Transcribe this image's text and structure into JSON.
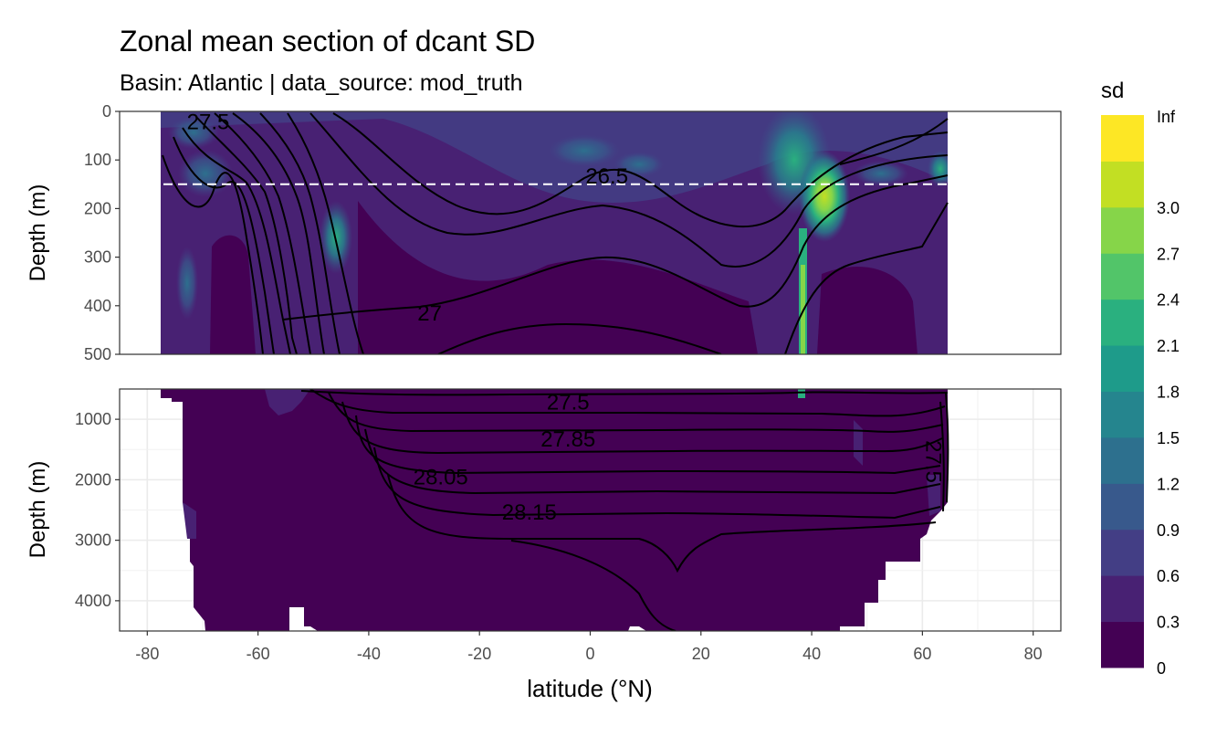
{
  "chart_data": {
    "type": "heatmap",
    "title": "Zonal mean section of dcant SD",
    "subtitle": "Basin: Atlantic | data_source: mod_truth",
    "xlabel": "latitude (°N)",
    "ylabel": "Depth (m)",
    "xlim": [
      -85,
      85
    ],
    "x_ticks": [
      -80,
      -60,
      -40,
      -20,
      0,
      20,
      40,
      60,
      80
    ],
    "x_tick_labels": [
      "-80",
      "-60",
      "-40",
      "-20",
      "0",
      "20",
      "40",
      "60",
      "80"
    ],
    "grid": true,
    "legend": {
      "title": "sd",
      "placement": "right",
      "breaks": [
        "0",
        "0.3",
        "0.6",
        "0.9",
        "1.2",
        "1.5",
        "1.8",
        "2.1",
        "2.4",
        "2.7",
        "3.0",
        "Inf"
      ],
      "colors": [
        "#440154",
        "#482173",
        "#433e85",
        "#38598c",
        "#2d708e",
        "#25858e",
        "#1e9b8a",
        "#2ab07f",
        "#52c569",
        "#86d549",
        "#c2df23",
        "#fde725"
      ]
    },
    "panels": [
      {
        "name": "upper",
        "ylim": [
          0,
          500
        ],
        "y_ticks": [
          0,
          100,
          200,
          300,
          400,
          500
        ],
        "y_tick_labels": [
          "0",
          "100",
          "200",
          "300",
          "400",
          "500"
        ],
        "reference_line_depth": 150,
        "contour_labels": [
          {
            "text": "27.5",
            "lat": -69,
            "depth": 22
          },
          {
            "text": "26.5",
            "lat": 3,
            "depth": 133
          },
          {
            "text": "27",
            "lat": -29,
            "depth": 415
          }
        ]
      },
      {
        "name": "lower",
        "ylim": [
          500,
          4500
        ],
        "y_ticks": [
          1000,
          2000,
          3000,
          4000
        ],
        "y_tick_labels": [
          "1000",
          "2000",
          "3000",
          "4000"
        ],
        "contour_labels": [
          {
            "text": "27.5",
            "lat": -4,
            "depth": 720
          },
          {
            "text": "27.85",
            "lat": -4,
            "depth": 1330
          },
          {
            "text": "28.05",
            "lat": -27,
            "depth": 1960
          },
          {
            "text": "28.15",
            "lat": -11,
            "depth": 2540
          },
          {
            "text": "27.5",
            "lat": 62,
            "depth": 1700
          }
        ]
      }
    ]
  }
}
